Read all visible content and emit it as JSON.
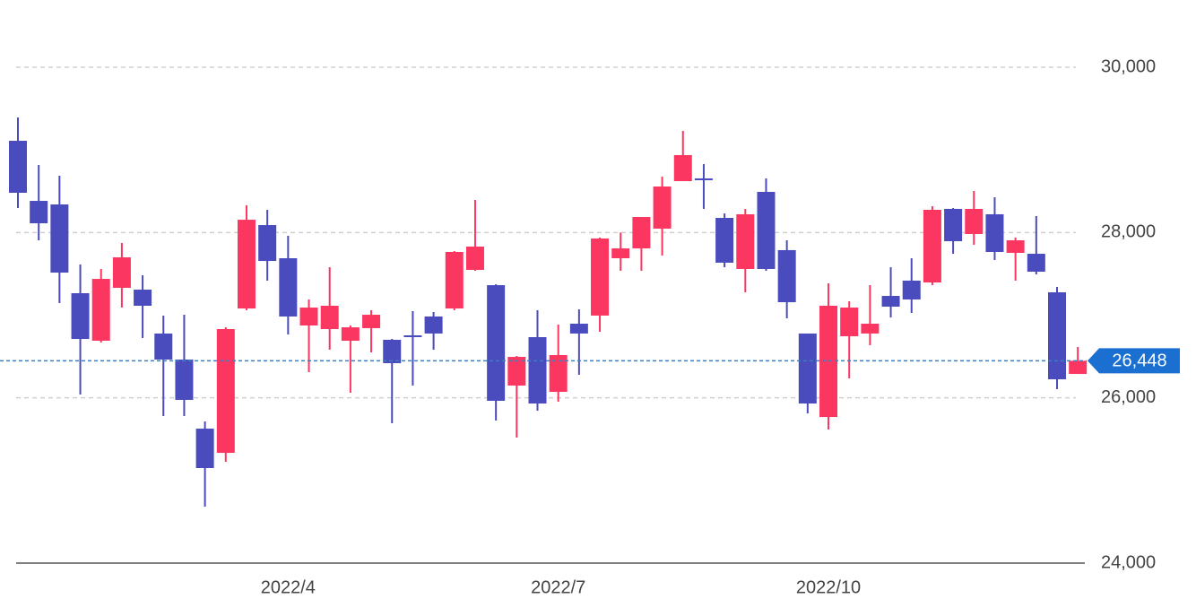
{
  "chart_data": {
    "type": "candlestick",
    "categories": [
      null,
      null,
      null,
      null,
      null,
      null,
      null,
      null,
      null,
      null,
      null,
      null,
      null,
      "2022/4",
      null,
      null,
      null,
      null,
      null,
      null,
      null,
      null,
      null,
      null,
      null,
      null,
      "2022/7",
      null,
      null,
      null,
      null,
      null,
      null,
      null,
      null,
      null,
      null,
      null,
      null,
      "2022/10",
      null,
      null,
      null,
      null,
      null,
      null,
      null,
      null,
      null,
      null,
      null,
      null
    ],
    "open": [
      29110,
      28383,
      28340,
      27266,
      26691,
      27331,
      27309,
      26778,
      26463,
      25627,
      25334,
      27081,
      28090,
      27689,
      26875,
      26832,
      26691,
      26843,
      26702,
      26756,
      26984,
      27081,
      27548,
      27363,
      26148,
      26734,
      26072,
      26897,
      26995,
      27689,
      27808,
      28047,
      28622,
      28655,
      28177,
      27559,
      28492,
      27787,
      26778,
      25768,
      26745,
      26778,
      27233,
      27418,
      27396,
      28286,
      27982,
      28221,
      27754,
      27743,
      27277,
      26289
    ],
    "high": [
      29392,
      28817,
      28687,
      27613,
      27559,
      27873,
      27483,
      26995,
      27005,
      25714,
      26853,
      28329,
      28275,
      27960,
      27190,
      27580,
      26875,
      27060,
      26713,
      27049,
      27038,
      27776,
      28394,
      27374,
      26506,
      27060,
      26886,
      27070,
      27939,
      28000,
      28188,
      28676,
      29230,
      28828,
      28231,
      28286,
      28655,
      27906,
      26778,
      27385,
      27168,
      27363,
      27580,
      27689,
      28318,
      28297,
      28503,
      28427,
      27939,
      28199,
      27342,
      26615
    ],
    "low": [
      28297,
      27906,
      27146,
      26040,
      26669,
      27092,
      26723,
      25779,
      25779,
      24683,
      25226,
      27060,
      27418,
      26767,
      26311,
      26582,
      26061,
      26550,
      25693,
      26148,
      26582,
      27060,
      27537,
      25725,
      25519,
      25844,
      25953,
      26278,
      26799,
      27537,
      27537,
      27721,
      28622,
      28286,
      27580,
      27277,
      27537,
      26962,
      25812,
      25617,
      26235,
      26636,
      26973,
      27027,
      27363,
      27743,
      27852,
      27667,
      27418,
      27494,
      26105,
      26289
    ],
    "close": [
      28481,
      28112,
      27515,
      26712,
      27439,
      27700,
      27114,
      26463,
      25975,
      25150,
      26832,
      28155,
      27656,
      26984,
      27092,
      27114,
      26853,
      27005,
      26419,
      26734,
      26778,
      27765,
      27830,
      25964,
      26495,
      25931,
      26517,
      26778,
      27928,
      27808,
      28188,
      28557,
      28937,
      28633,
      27635,
      28221,
      27559,
      27157,
      25931,
      27114,
      27092,
      26897,
      27103,
      27190,
      28275,
      27895,
      28286,
      27765,
      27906,
      27526,
      26224,
      26448
    ],
    "up_color": "#fb3761",
    "down_color": "#4a4bbd",
    "ylim": [
      24000,
      30000
    ],
    "yticks": [
      {
        "value": 24000,
        "label": "24,000"
      },
      {
        "value": 26000,
        "label": "26,000"
      },
      {
        "value": 28000,
        "label": "28,000"
      },
      {
        "value": 30000,
        "label": "30,000"
      }
    ],
    "grid": true,
    "last_price": {
      "value": 26448,
      "label": "26,448"
    },
    "last_price_color": "#1a6fd0"
  }
}
